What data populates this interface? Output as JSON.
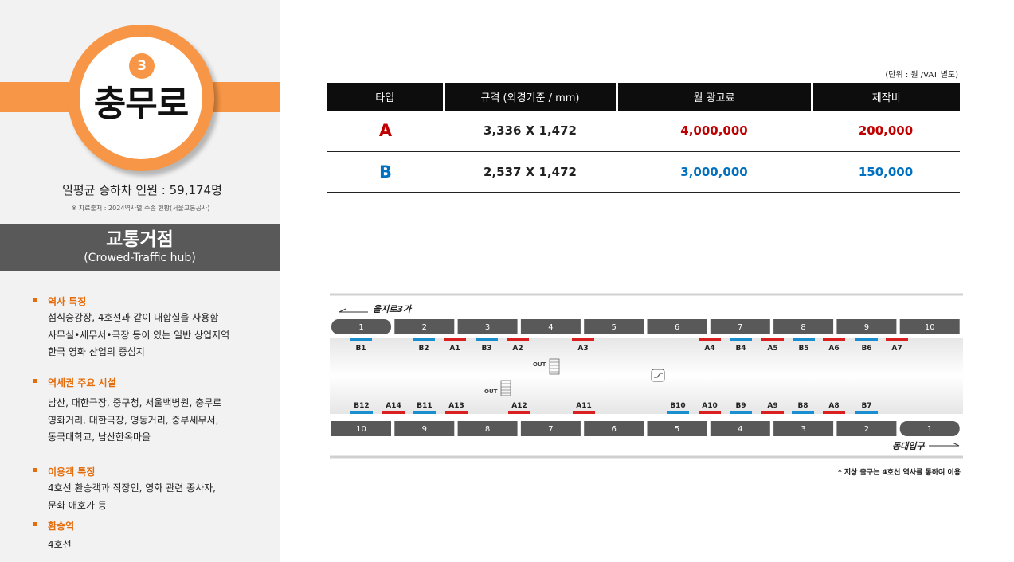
{
  "station": {
    "number": "3",
    "name": "충무로",
    "passengers": "일평균 승하차 인원 : 59,174명",
    "source": "※ 자료출처 : 2024역사별 수송 현황(서울교통공사)"
  },
  "hub": {
    "title": "교통거점",
    "subtitle": "(Crowed-Traffic hub)"
  },
  "sections": {
    "history": {
      "title": "역사 특징",
      "lines": [
        "섬식승강장, 4호선과 같이 대합실을 사용함",
        "사무실•세무서•극장 등이 있는 일반 상업지역",
        "한국 영화 산업의 중심지"
      ]
    },
    "facilities": {
      "title": "역세권 주요 시설",
      "lines": [
        "남산, 대한극장, 중구청, 서울백병원, 충무로",
        "영화거리, 대한극장, 명동거리, 중부세무서,",
        "동국대학교, 남산한옥마을"
      ]
    },
    "users": {
      "title": "이용객 특징",
      "lines": [
        "4호선 환승객과 직장인, 영화 관련 종사자,",
        "문화 애호가 등"
      ]
    },
    "transfer": {
      "title": "환승역",
      "lines": [
        "4호선"
      ]
    }
  },
  "table": {
    "unit": "(단위 : 원 /VAT 별도)",
    "headers": [
      "타입",
      "규격 (외경기준 / mm)",
      "월 광고료",
      "제작비"
    ],
    "rows": [
      {
        "type": "A",
        "size": "3,336 X 1,472",
        "fee": "4,000,000",
        "production": "200,000",
        "color": "#c00000"
      },
      {
        "type": "B",
        "size": "2,537 X 1,472",
        "fee": "3,000,000",
        "production": "150,000",
        "color": "#0070c0"
      }
    ]
  },
  "map": {
    "direction_top": "을지로3가",
    "direction_bottom": "동대입구",
    "top_cars": [
      "1",
      "2",
      "3",
      "4",
      "5",
      "6",
      "7",
      "8",
      "9",
      "10"
    ],
    "bottom_cars": [
      "10",
      "9",
      "8",
      "7",
      "6",
      "5",
      "4",
      "3",
      "2",
      "1"
    ],
    "exit_label": "OUT",
    "top_ads": [
      {
        "label": "B1",
        "type": "B"
      },
      {
        "label": "B2",
        "type": "B"
      },
      {
        "label": "A1",
        "type": "A"
      },
      {
        "label": "B3",
        "type": "B"
      },
      {
        "label": "A2",
        "type": "A"
      },
      {
        "label": "A3",
        "type": "A"
      },
      {
        "label": "A4",
        "type": "A"
      },
      {
        "label": "B4",
        "type": "B"
      },
      {
        "label": "A5",
        "type": "A"
      },
      {
        "label": "B5",
        "type": "B"
      },
      {
        "label": "A6",
        "type": "A"
      },
      {
        "label": "B6",
        "type": "B"
      },
      {
        "label": "A7",
        "type": "A"
      }
    ],
    "bottom_ads": [
      {
        "label": "B12",
        "type": "B"
      },
      {
        "label": "A14",
        "type": "A"
      },
      {
        "label": "B11",
        "type": "B"
      },
      {
        "label": "A13",
        "type": "A"
      },
      {
        "label": "A12",
        "type": "A"
      },
      {
        "label": "A11",
        "type": "A"
      },
      {
        "label": "B10",
        "type": "B"
      },
      {
        "label": "A10",
        "type": "A"
      },
      {
        "label": "B9",
        "type": "B"
      },
      {
        "label": "A9",
        "type": "A"
      },
      {
        "label": "B8",
        "type": "B"
      },
      {
        "label": "A8",
        "type": "A"
      },
      {
        "label": "B7",
        "type": "B"
      }
    ],
    "colors": {
      "A": "#d9201f",
      "B": "#1a8fcf",
      "car": "#595959"
    },
    "note": "* 지상 출구는 4호선 역사를 통하여 이용"
  }
}
